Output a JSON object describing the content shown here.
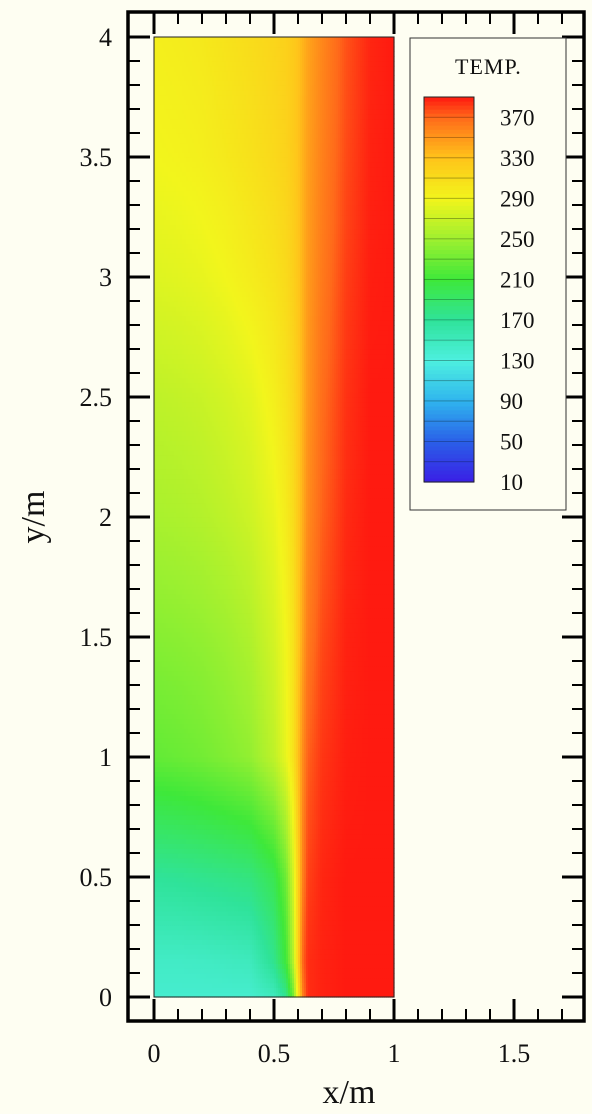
{
  "chart_data": {
    "type": "heatmap",
    "title": "",
    "xlabel": "x/m",
    "ylabel": "y/m",
    "xlim": [
      0,
      1.75
    ],
    "ylim": [
      0,
      4
    ],
    "x_ticks": [
      "0",
      "0.5",
      "1",
      "1.5"
    ],
    "x_tick_values": [
      0,
      0.5,
      1,
      1.5
    ],
    "y_ticks": [
      "0",
      "0.5",
      "1",
      "1.5",
      "2",
      "2.5",
      "3",
      "3.5",
      "4"
    ],
    "y_tick_values": [
      0,
      0.5,
      1,
      1.5,
      2,
      2.5,
      3,
      3.5,
      4
    ],
    "field_extent": {
      "x": [
        0,
        1
      ],
      "y": [
        0,
        4
      ]
    },
    "legend": {
      "title": "TEMP.",
      "placement": "top-right",
      "labels": [
        "370",
        "330",
        "290",
        "250",
        "210",
        "170",
        "130",
        "90",
        "50",
        "10"
      ],
      "range": [
        10,
        390
      ]
    },
    "colormap": [
      [
        10,
        "#3a1ee6"
      ],
      [
        50,
        "#2a5fe8"
      ],
      [
        90,
        "#2fb4ee"
      ],
      [
        130,
        "#4ef0e0"
      ],
      [
        170,
        "#2fe39a"
      ],
      [
        210,
        "#3ee83a"
      ],
      [
        250,
        "#9ef030"
      ],
      [
        290,
        "#f2f51c"
      ],
      [
        330,
        "#ffc41a"
      ],
      [
        370,
        "#ff6a1a"
      ],
      [
        390,
        "#ff1a10"
      ]
    ],
    "temperature_field": {
      "x": [
        0,
        0.1,
        0.2,
        0.3,
        0.4,
        0.5,
        0.55,
        0.58,
        0.6,
        0.62,
        0.64,
        0.7,
        0.8,
        0.9,
        1.0
      ],
      "y": [
        0,
        0.15,
        0.5,
        1.0,
        1.5,
        2.0,
        2.5,
        3.0,
        3.5,
        4.0
      ],
      "values": [
        [
          140,
          140,
          140,
          140,
          140,
          150,
          175,
          230,
          300,
          360,
          385,
          388,
          390,
          390,
          390
        ],
        [
          145,
          145,
          146,
          148,
          150,
          175,
          210,
          260,
          320,
          370,
          385,
          388,
          390,
          390,
          390
        ],
        [
          170,
          172,
          175,
          178,
          182,
          200,
          230,
          275,
          320,
          360,
          380,
          387,
          390,
          390,
          390
        ],
        [
          225,
          228,
          232,
          238,
          245,
          265,
          285,
          305,
          330,
          355,
          372,
          383,
          389,
          390,
          390
        ],
        [
          240,
          242,
          245,
          250,
          258,
          275,
          290,
          305,
          325,
          345,
          362,
          378,
          388,
          390,
          390
        ],
        [
          255,
          257,
          260,
          265,
          272,
          285,
          298,
          310,
          325,
          340,
          355,
          372,
          386,
          390,
          390
        ],
        [
          265,
          267,
          270,
          275,
          282,
          295,
          305,
          315,
          325,
          338,
          350,
          368,
          384,
          390,
          390
        ],
        [
          280,
          282,
          285,
          290,
          297,
          305,
          312,
          320,
          328,
          338,
          348,
          363,
          381,
          389,
          390
        ],
        [
          290,
          292,
          295,
          300,
          306,
          313,
          318,
          324,
          330,
          338,
          346,
          360,
          378,
          388,
          390
        ],
        [
          295,
          297,
          300,
          305,
          310,
          316,
          320,
          325,
          330,
          337,
          344,
          357,
          376,
          387,
          390
        ]
      ]
    }
  }
}
